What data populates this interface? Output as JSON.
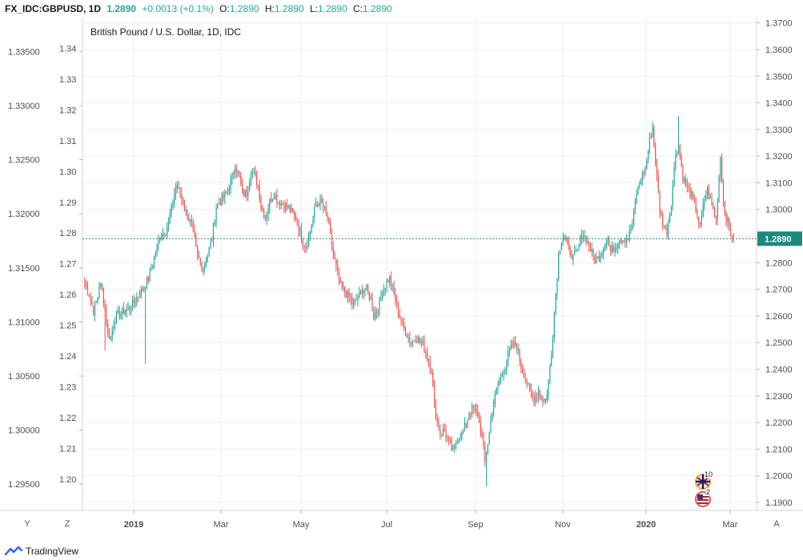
{
  "header": {
    "symbol": "FX_IDC:GBPUSD, 1D",
    "last": "1.2890",
    "change": "+0.0013 (+0.1%)",
    "o_label": "O:",
    "o_val": "1.2890",
    "h_label": "H:",
    "h_val": "1.2890",
    "l_label": "L:",
    "l_val": "1.2890",
    "c_label": "C:",
    "c_val": "1.2890"
  },
  "footer": {
    "logo": "TradingView",
    "y_btn": "Y",
    "z_btn": "Z",
    "a_btn": "A"
  },
  "events": {
    "uk_count": "10",
    "us_count": "2"
  },
  "colors": {
    "up": "#26a69a",
    "down": "#ef5350",
    "grid": "#e9eef2",
    "price_line": "#1b8a7e"
  },
  "chart_data": {
    "type": "candlestick",
    "title": "British Pound / U.S. Dollar, 1D, IDC",
    "x_labels": [
      "2019",
      "Mar",
      "May",
      "Jul",
      "Sep",
      "Nov",
      "2020",
      "Mar"
    ],
    "inner_axis_ticks": [
      "1.34",
      "1.33",
      "1.32",
      "1.31",
      "1.30",
      "1.29",
      "1.28",
      "1.27",
      "1.26",
      "1.25",
      "1.24",
      "1.23",
      "1.22",
      "1.21",
      "1.20"
    ],
    "left_axis_ticks": [
      "1.33500",
      "1.33000",
      "1.32500",
      "1.32000",
      "1.31500",
      "1.31000",
      "1.30500",
      "1.30000",
      "1.29500"
    ],
    "right_axis_ticks": [
      "1.3700",
      "1.3600",
      "1.3500",
      "1.3400",
      "1.3300",
      "1.3200",
      "1.3100",
      "1.3000",
      "1.2900",
      "1.2800",
      "1.2700",
      "1.2600",
      "1.2500",
      "1.2400",
      "1.2300",
      "1.2200",
      "1.2100",
      "1.2000",
      "1.1900"
    ],
    "last_price": 1.289,
    "last_price_label": "1.2890",
    "ylim": [
      1.187,
      1.372
    ],
    "anchors": [
      [
        0,
        1.272
      ],
      [
        3,
        1.268
      ],
      [
        6,
        1.262
      ],
      [
        9,
        1.267
      ],
      [
        10,
        1.272
      ],
      [
        12,
        1.27
      ],
      [
        14,
        1.262
      ],
      [
        16,
        1.253
      ],
      [
        18,
        1.252
      ],
      [
        20,
        1.258
      ],
      [
        22,
        1.26
      ],
      [
        25,
        1.261
      ],
      [
        28,
        1.262
      ],
      [
        31,
        1.263
      ],
      [
        34,
        1.265
      ],
      [
        36,
        1.267
      ],
      [
        40,
        1.27
      ],
      [
        44,
        1.274
      ],
      [
        48,
        1.282
      ],
      [
        52,
        1.29
      ],
      [
        56,
        1.292
      ],
      [
        60,
        1.3
      ],
      [
        63,
        1.309
      ],
      [
        66,
        1.306
      ],
      [
        70,
        1.299
      ],
      [
        74,
        1.294
      ],
      [
        78,
        1.282
      ],
      [
        82,
        1.278
      ],
      [
        85,
        1.283
      ],
      [
        88,
        1.289
      ],
      [
        91,
        1.301
      ],
      [
        94,
        1.303
      ],
      [
        98,
        1.306
      ],
      [
        101,
        1.31
      ],
      [
        104,
        1.317
      ],
      [
        107,
        1.312
      ],
      [
        109,
        1.306
      ],
      [
        112,
        1.306
      ],
      [
        115,
        1.314
      ],
      [
        117,
        1.313
      ],
      [
        120,
        1.309
      ],
      [
        122,
        1.301
      ],
      [
        125,
        1.297
      ],
      [
        128,
        1.303
      ],
      [
        131,
        1.306
      ],
      [
        134,
        1.303
      ],
      [
        137,
        1.302
      ],
      [
        140,
        1.301
      ],
      [
        143,
        1.299
      ],
      [
        147,
        1.296
      ],
      [
        150,
        1.289
      ],
      [
        153,
        1.286
      ],
      [
        156,
        1.292
      ],
      [
        160,
        1.302
      ],
      [
        163,
        1.303
      ],
      [
        165,
        1.301
      ],
      [
        168,
        1.297
      ],
      [
        171,
        1.286
      ],
      [
        174,
        1.278
      ],
      [
        177,
        1.271
      ],
      [
        180,
        1.269
      ],
      [
        183,
        1.267
      ],
      [
        186,
        1.264
      ],
      [
        189,
        1.267
      ],
      [
        192,
        1.27
      ],
      [
        195,
        1.27
      ],
      [
        198,
        1.266
      ],
      [
        200,
        1.26
      ],
      [
        203,
        1.263
      ],
      [
        206,
        1.269
      ],
      [
        209,
        1.273
      ],
      [
        211,
        1.274
      ],
      [
        214,
        1.268
      ],
      [
        217,
        1.262
      ],
      [
        220,
        1.256
      ],
      [
        223,
        1.253
      ],
      [
        226,
        1.25
      ],
      [
        229,
        1.252
      ],
      [
        232,
        1.251
      ],
      [
        234,
        1.249
      ],
      [
        237,
        1.245
      ],
      [
        240,
        1.24
      ],
      [
        242,
        1.226
      ],
      [
        244,
        1.22
      ],
      [
        246,
        1.216
      ],
      [
        249,
        1.217
      ],
      [
        252,
        1.212
      ],
      [
        255,
        1.209
      ],
      [
        258,
        1.214
      ],
      [
        261,
        1.216
      ],
      [
        264,
        1.219
      ],
      [
        266,
        1.224
      ],
      [
        269,
        1.225
      ],
      [
        272,
        1.223
      ],
      [
        275,
        1.214
      ],
      [
        277,
        1.205
      ],
      [
        280,
        1.216
      ],
      [
        282,
        1.225
      ],
      [
        285,
        1.232
      ],
      [
        288,
        1.237
      ],
      [
        291,
        1.241
      ],
      [
        293,
        1.245
      ],
      [
        296,
        1.249
      ],
      [
        299,
        1.249
      ],
      [
        302,
        1.241
      ],
      [
        305,
        1.237
      ],
      [
        308,
        1.231
      ],
      [
        311,
        1.229
      ],
      [
        314,
        1.232
      ],
      [
        317,
        1.228
      ],
      [
        320,
        1.23
      ],
      [
        323,
        1.247
      ],
      [
        325,
        1.261
      ],
      [
        328,
        1.283
      ],
      [
        330,
        1.289
      ],
      [
        332,
        1.29
      ],
      [
        335,
        1.285
      ],
      [
        338,
        1.282
      ],
      [
        341,
        1.284
      ],
      [
        344,
        1.291
      ],
      [
        347,
        1.289
      ],
      [
        350,
        1.285
      ],
      [
        353,
        1.281
      ],
      [
        356,
        1.282
      ],
      [
        359,
        1.286
      ],
      [
        362,
        1.289
      ],
      [
        364,
        1.284
      ],
      [
        367,
        1.286
      ],
      [
        370,
        1.289
      ],
      [
        373,
        1.289
      ],
      [
        376,
        1.289
      ],
      [
        379,
        1.294
      ],
      [
        382,
        1.306
      ],
      [
        385,
        1.312
      ],
      [
        388,
        1.315
      ],
      [
        391,
        1.326
      ],
      [
        393,
        1.331
      ],
      [
        395,
        1.318
      ],
      [
        398,
        1.3
      ],
      [
        400,
        1.295
      ],
      [
        403,
        1.292
      ],
      [
        406,
        1.303
      ],
      [
        409,
        1.321
      ],
      [
        411,
        1.324
      ],
      [
        414,
        1.312
      ],
      [
        417,
        1.308
      ],
      [
        420,
        1.305
      ],
      [
        423,
        1.3
      ],
      [
        426,
        1.293
      ],
      [
        429,
        1.304
      ],
      [
        431,
        1.307
      ],
      [
        434,
        1.302
      ],
      [
        437,
        1.296
      ],
      [
        440,
        1.32
      ],
      [
        442,
        1.303
      ],
      [
        444,
        1.297
      ],
      [
        447,
        1.291
      ],
      [
        449,
        1.289
      ]
    ],
    "wicks": [
      [
        14,
        1.247
      ],
      [
        42,
        1.242
      ],
      [
        278,
        1.196
      ],
      [
        411,
        1.335
      ]
    ]
  }
}
